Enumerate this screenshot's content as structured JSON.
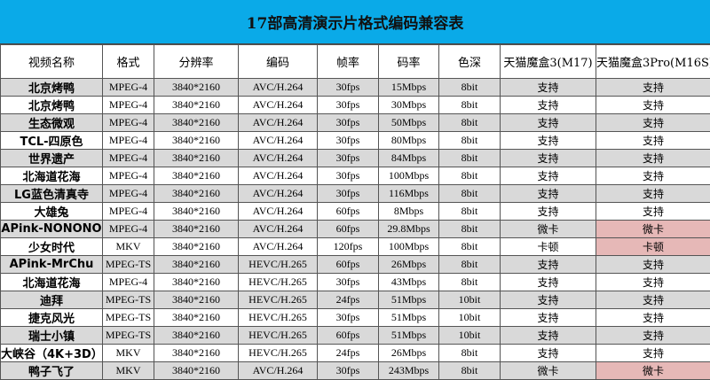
{
  "title": "17部高清演示片格式编码兼容表",
  "colors": {
    "header_bg": "#0aaae8",
    "row_alt": "#d9d9d9",
    "problem_highlight": "#e6b8b7"
  },
  "columns": [
    "视频名称",
    "格式",
    "分辨率",
    "编码",
    "帧率",
    "码率",
    "色深",
    "天猫魔盒3(M17)",
    "天猫魔盒3Pro(M16S)"
  ],
  "rows": [
    {
      "cells": [
        "北京烤鸭",
        "MPEG-4",
        "3840*2160",
        "AVC/H.264",
        "30fps",
        "15Mbps",
        "8bit",
        "支持",
        "支持"
      ],
      "highlight": false
    },
    {
      "cells": [
        "北京烤鸭",
        "MPEG-4",
        "3840*2160",
        "AVC/H.264",
        "30fps",
        "30Mbps",
        "8bit",
        "支持",
        "支持"
      ],
      "highlight": false
    },
    {
      "cells": [
        "生态微观",
        "MPEG-4",
        "3840*2160",
        "AVC/H.264",
        "30fps",
        "50Mbps",
        "8bit",
        "支持",
        "支持"
      ],
      "highlight": false
    },
    {
      "cells": [
        "TCL-四原色",
        "MPEG-4",
        "3840*2160",
        "AVC/H.264",
        "30fps",
        "80Mbps",
        "8bit",
        "支持",
        "支持"
      ],
      "highlight": false
    },
    {
      "cells": [
        "世界遗产",
        "MPEG-4",
        "3840*2160",
        "AVC/H.264",
        "30fps",
        "84Mbps",
        "8bit",
        "支持",
        "支持"
      ],
      "highlight": false
    },
    {
      "cells": [
        "北海道花海",
        "MPEG-4",
        "3840*2160",
        "AVC/H.264",
        "30fps",
        "100Mbps",
        "8bit",
        "支持",
        "支持"
      ],
      "highlight": false
    },
    {
      "cells": [
        "LG蓝色清真寺",
        "MPEG-4",
        "3840*2160",
        "AVC/H.264",
        "30fps",
        "116Mbps",
        "8bit",
        "支持",
        "支持"
      ],
      "highlight": false
    },
    {
      "cells": [
        "大雄兔",
        "MPEG-4",
        "3840*2160",
        "AVC/H.264",
        "60fps",
        "8Mbps",
        "8bit",
        "支持",
        "支持"
      ],
      "highlight": false
    },
    {
      "cells": [
        "APink-NONONO",
        "MPEG-4",
        "3840*2160",
        "AVC/H.264",
        "60fps",
        "29.8Mbps",
        "8bit",
        "微卡",
        "微卡"
      ],
      "highlight": true
    },
    {
      "cells": [
        "少女时代",
        "MKV",
        "3840*2160",
        "AVC/H.264",
        "120fps",
        "100Mbps",
        "8bit",
        "卡顿",
        "卡顿"
      ],
      "highlight": true
    },
    {
      "cells": [
        "APink-MrChu",
        "MPEG-TS",
        "3840*2160",
        "HEVC/H.265",
        "60fps",
        "26Mbps",
        "8bit",
        "支持",
        "支持"
      ],
      "highlight": false
    },
    {
      "cells": [
        "北海道花海",
        "MPEG-4",
        "3840*2160",
        "HEVC/H.265",
        "30fps",
        "43Mbps",
        "8bit",
        "支持",
        "支持"
      ],
      "highlight": false
    },
    {
      "cells": [
        "迪拜",
        "MPEG-TS",
        "3840*2160",
        "HEVC/H.265",
        "24fps",
        "51Mbps",
        "10bit",
        "支持",
        "支持"
      ],
      "highlight": false
    },
    {
      "cells": [
        "捷克风光",
        "MPEG-TS",
        "3840*2160",
        "HEVC/H.265",
        "30fps",
        "51Mbps",
        "10bit",
        "支持",
        "支持"
      ],
      "highlight": false
    },
    {
      "cells": [
        "瑞士小镇",
        "MPEG-TS",
        "3840*2160",
        "HEVC/H.265",
        "60fps",
        "51Mbps",
        "10bit",
        "支持",
        "支持"
      ],
      "highlight": false
    },
    {
      "cells": [
        "大峡谷（4K+3D）",
        "MKV",
        "3840*2160",
        "HEVC/H.265",
        "24fps",
        "26Mbps",
        "8bit",
        "支持",
        "支持"
      ],
      "highlight": false
    },
    {
      "cells": [
        "鸭子飞了",
        "MKV",
        "3840*2160",
        "AVC/H.264",
        "30fps",
        "243Mbps",
        "8bit",
        "微卡",
        "微卡"
      ],
      "highlight": true
    }
  ]
}
